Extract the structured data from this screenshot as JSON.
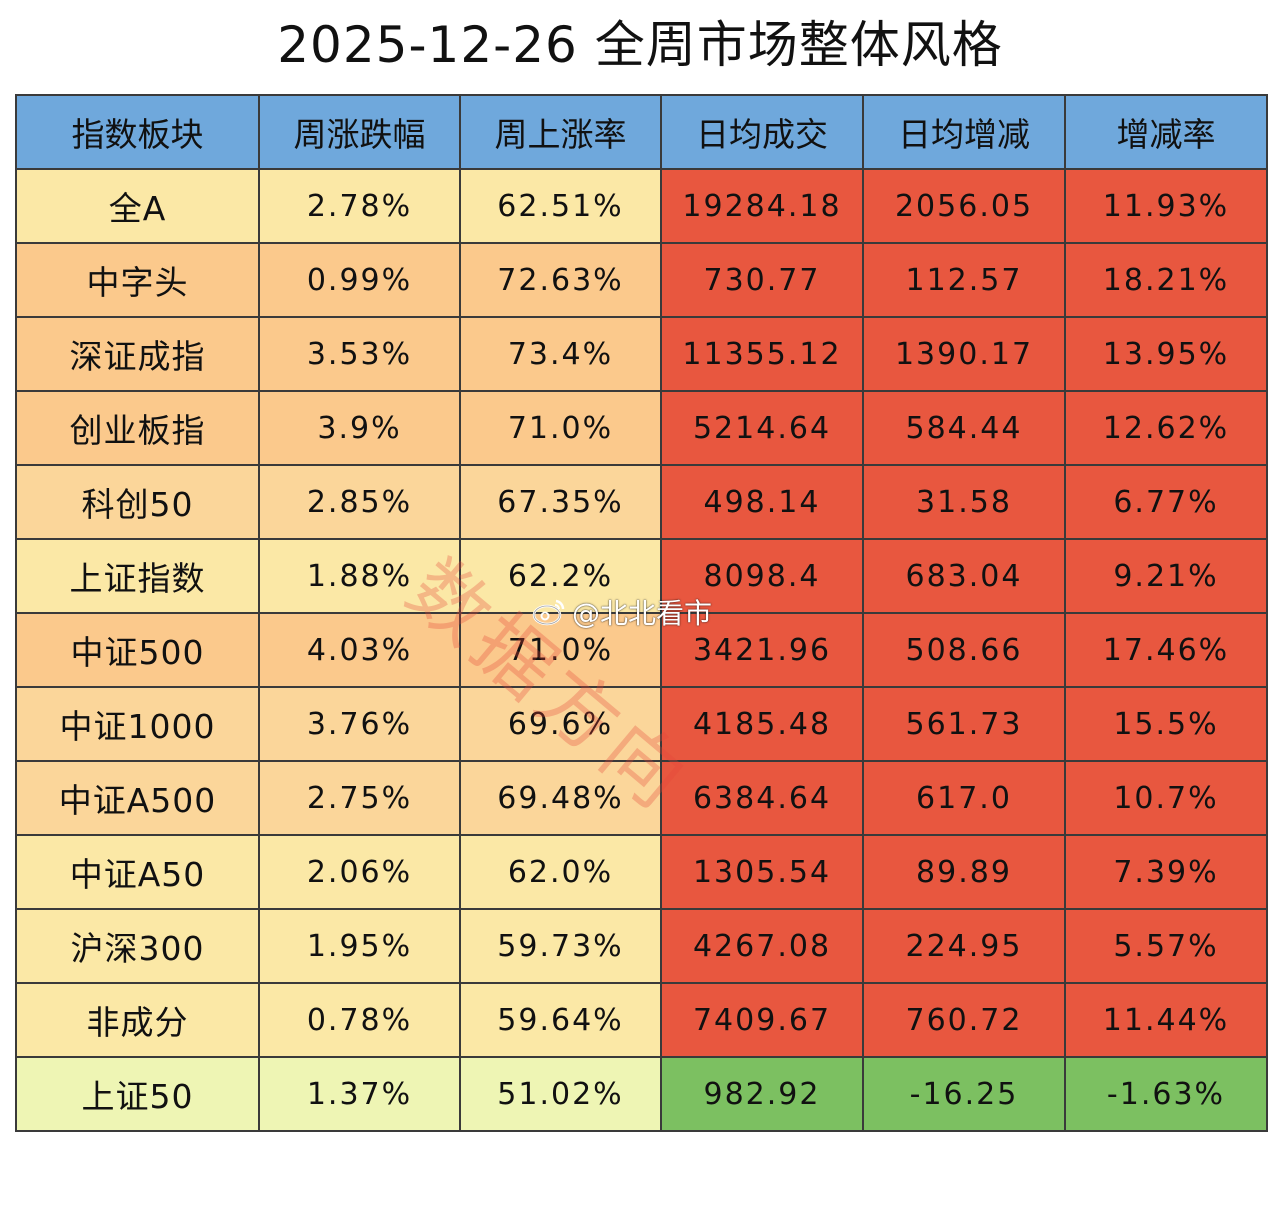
{
  "title": "2025-12-26 全周市场整体风格",
  "header_bg": "#6fa8dc",
  "columns": [
    "指数板块",
    "周涨跌幅",
    "周上涨率",
    "日均成交",
    "日均增减",
    "增减率"
  ],
  "colors": {
    "light_yellow": "#fbe8a6",
    "light_orange": "#fbc98c",
    "red": "#e8573f",
    "green": "#7cc061",
    "pale_green": "#eef5b4"
  },
  "rows": [
    {
      "name": "全A",
      "cells": [
        "2.78%",
        "62.51%",
        "19284.18",
        "2056.05",
        "11.93%"
      ],
      "left_color": "#fbe8a6",
      "right_color": "#e8573f"
    },
    {
      "name": "中字头",
      "cells": [
        "0.99%",
        "72.63%",
        "730.77",
        "112.57",
        "18.21%"
      ],
      "left_color": "#fbc98c",
      "right_color": "#e8573f"
    },
    {
      "name": "深证成指",
      "cells": [
        "3.53%",
        "73.4%",
        "11355.12",
        "1390.17",
        "13.95%"
      ],
      "left_color": "#fbc98c",
      "right_color": "#e8573f"
    },
    {
      "name": "创业板指",
      "cells": [
        "3.9%",
        "71.0%",
        "5214.64",
        "584.44",
        "12.62%"
      ],
      "left_color": "#fbc98c",
      "right_color": "#e8573f"
    },
    {
      "name": "科创50",
      "cells": [
        "2.85%",
        "67.35%",
        "498.14",
        "31.58",
        "6.77%"
      ],
      "left_color": "#fbd69a",
      "right_color": "#e8573f"
    },
    {
      "name": "上证指数",
      "cells": [
        "1.88%",
        "62.2%",
        "8098.4",
        "683.04",
        "9.21%"
      ],
      "left_color": "#fbe8a6",
      "right_color": "#e8573f"
    },
    {
      "name": "中证500",
      "cells": [
        "4.03%",
        "71.0%",
        "3421.96",
        "508.66",
        "17.46%"
      ],
      "left_color": "#fbc98c",
      "right_color": "#e8573f"
    },
    {
      "name": "中证1000",
      "cells": [
        "3.76%",
        "69.6%",
        "4185.48",
        "561.73",
        "15.5%"
      ],
      "left_color": "#fbd69a",
      "right_color": "#e8573f"
    },
    {
      "name": "中证A500",
      "cells": [
        "2.75%",
        "69.48%",
        "6384.64",
        "617.0",
        "10.7%"
      ],
      "left_color": "#fbd69a",
      "right_color": "#e8573f"
    },
    {
      "name": "中证A50",
      "cells": [
        "2.06%",
        "62.0%",
        "1305.54",
        "89.89",
        "7.39%"
      ],
      "left_color": "#fbe8a6",
      "right_color": "#e8573f"
    },
    {
      "name": "沪深300",
      "cells": [
        "1.95%",
        "59.73%",
        "4267.08",
        "224.95",
        "5.57%"
      ],
      "left_color": "#fbe8a6",
      "right_color": "#e8573f"
    },
    {
      "name": "非成分",
      "cells": [
        "0.78%",
        "59.64%",
        "7409.67",
        "760.72",
        "11.44%"
      ],
      "left_color": "#fbe8a6",
      "right_color": "#e8573f"
    },
    {
      "name": "上证50",
      "cells": [
        "1.37%",
        "51.02%",
        "982.92",
        "-16.25",
        "-1.63%"
      ],
      "left_color": "#eef5b4",
      "right_color": "#7cc061"
    }
  ],
  "watermark": {
    "text": "数据方向",
    "handle": "@北北看市",
    "icon": "weibo-logo-icon"
  }
}
